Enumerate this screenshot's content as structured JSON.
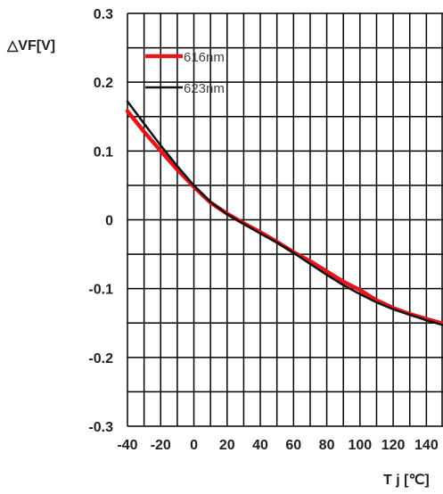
{
  "chart_data": {
    "type": "line",
    "title": "",
    "ylabel": "△VF[V]",
    "xlabel": "T j [℃]",
    "xlim": [
      -40,
      150
    ],
    "ylim": [
      -0.3,
      0.3
    ],
    "grid": true,
    "legend": "top-left",
    "x_ticks": [
      "-40",
      "-20",
      "0",
      "20",
      "40",
      "60",
      "80",
      "100",
      "120",
      "140"
    ],
    "y_ticks": [
      "0.3",
      "0.2",
      "0.1",
      "0",
      "-0.1",
      "-0.2",
      "-0.3"
    ],
    "series": [
      {
        "name": "616nm",
        "color": "#e8141b",
        "x": [
          -40,
          -30,
          -20,
          -10,
          0,
          10,
          20,
          30,
          40,
          50,
          60,
          70,
          80,
          90,
          100,
          110,
          120,
          130,
          140,
          150
        ],
        "y": [
          0.158,
          0.128,
          0.1,
          0.073,
          0.048,
          0.025,
          0.009,
          -0.005,
          -0.018,
          -0.032,
          -0.047,
          -0.06,
          -0.075,
          -0.09,
          -0.102,
          -0.117,
          -0.128,
          -0.137,
          -0.144,
          -0.151
        ]
      },
      {
        "name": "623nm",
        "color": "#111111",
        "x": [
          -40,
          -30,
          -20,
          -10,
          0,
          10,
          20,
          30,
          40,
          50,
          60,
          70,
          80,
          90,
          100,
          110,
          120,
          130,
          140,
          150
        ],
        "y": [
          0.172,
          0.14,
          0.108,
          0.078,
          0.05,
          0.026,
          0.008,
          -0.006,
          -0.02,
          -0.033,
          -0.048,
          -0.064,
          -0.08,
          -0.095,
          -0.108,
          -0.12,
          -0.13,
          -0.138,
          -0.146,
          -0.153
        ]
      }
    ]
  }
}
